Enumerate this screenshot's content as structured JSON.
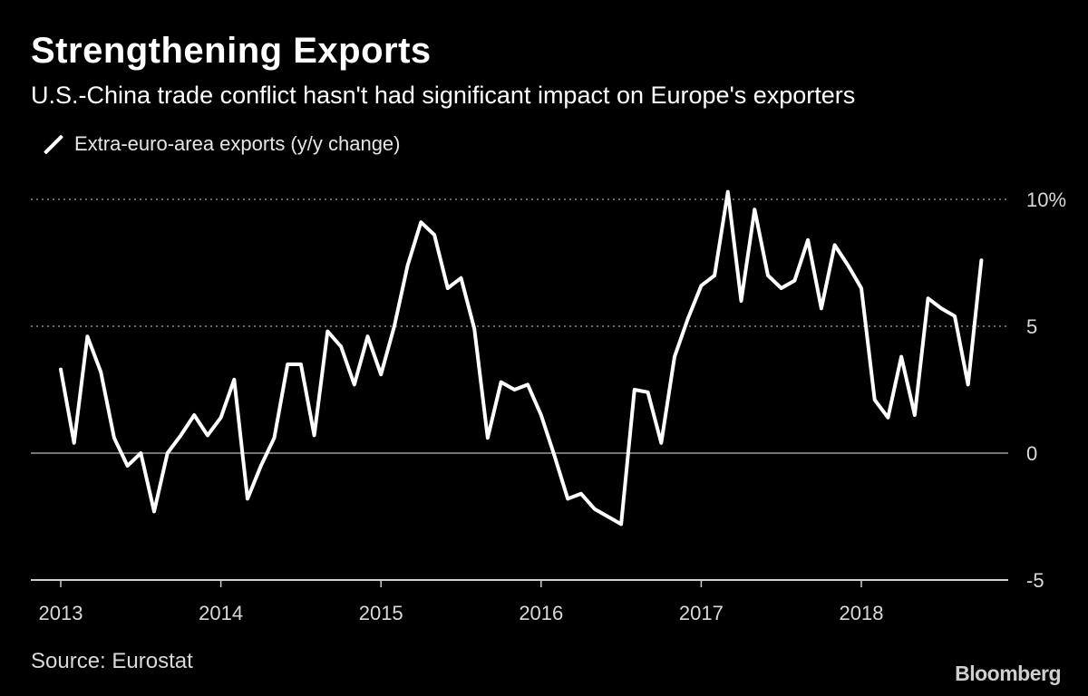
{
  "title": "Strengthening Exports",
  "subtitle": "U.S.-China trade conflict hasn't had significant impact on Europe's exporters",
  "source": "Source: Eurostat",
  "brand": "Bloomberg",
  "colors": {
    "background": "#000000",
    "line": "#ffffff",
    "grid": "#8a8a8a",
    "text": "#d9d9d9"
  },
  "chart_data": {
    "type": "line",
    "title": "Strengthening Exports",
    "xlabel": "",
    "ylabel": "",
    "ylim": [
      -5,
      10
    ],
    "xlim": [
      2013.0,
      2018.9
    ],
    "y_ticks": [
      {
        "value": 10,
        "label": "10%"
      },
      {
        "value": 5,
        "label": "5"
      },
      {
        "value": 0,
        "label": "0"
      },
      {
        "value": -5,
        "label": "-5"
      }
    ],
    "x_ticks": [
      {
        "value": 2013,
        "label": "2013"
      },
      {
        "value": 2014,
        "label": "2014"
      },
      {
        "value": 2015,
        "label": "2015"
      },
      {
        "value": 2016,
        "label": "2016"
      },
      {
        "value": 2017,
        "label": "2017"
      },
      {
        "value": 2018,
        "label": "2018"
      }
    ],
    "grid": "dotted horizontal",
    "legend": "top-left",
    "series": [
      {
        "name": "Extra-euro-area exports (y/y change)",
        "start": "2013-01",
        "frequency": "monthly",
        "values": [
          3.3,
          0.4,
          4.6,
          3.2,
          0.6,
          -0.5,
          0.0,
          -2.3,
          0.0,
          0.7,
          1.5,
          0.7,
          1.4,
          2.9,
          -1.8,
          -0.5,
          0.6,
          3.5,
          3.5,
          0.7,
          4.8,
          4.2,
          2.7,
          4.6,
          3.1,
          5.0,
          7.4,
          9.1,
          8.6,
          6.5,
          6.9,
          4.9,
          0.6,
          2.8,
          2.5,
          2.7,
          1.5,
          -0.1,
          -1.8,
          -1.6,
          -2.2,
          -2.5,
          -2.8,
          2.5,
          2.4,
          0.4,
          3.8,
          5.3,
          6.6,
          7.0,
          10.3,
          6.0,
          9.6,
          7.0,
          6.5,
          6.8,
          8.4,
          5.7,
          8.2,
          7.4,
          6.5,
          2.1,
          1.4,
          3.8,
          1.5,
          6.1,
          5.7,
          5.4,
          2.7,
          7.6
        ]
      }
    ]
  }
}
